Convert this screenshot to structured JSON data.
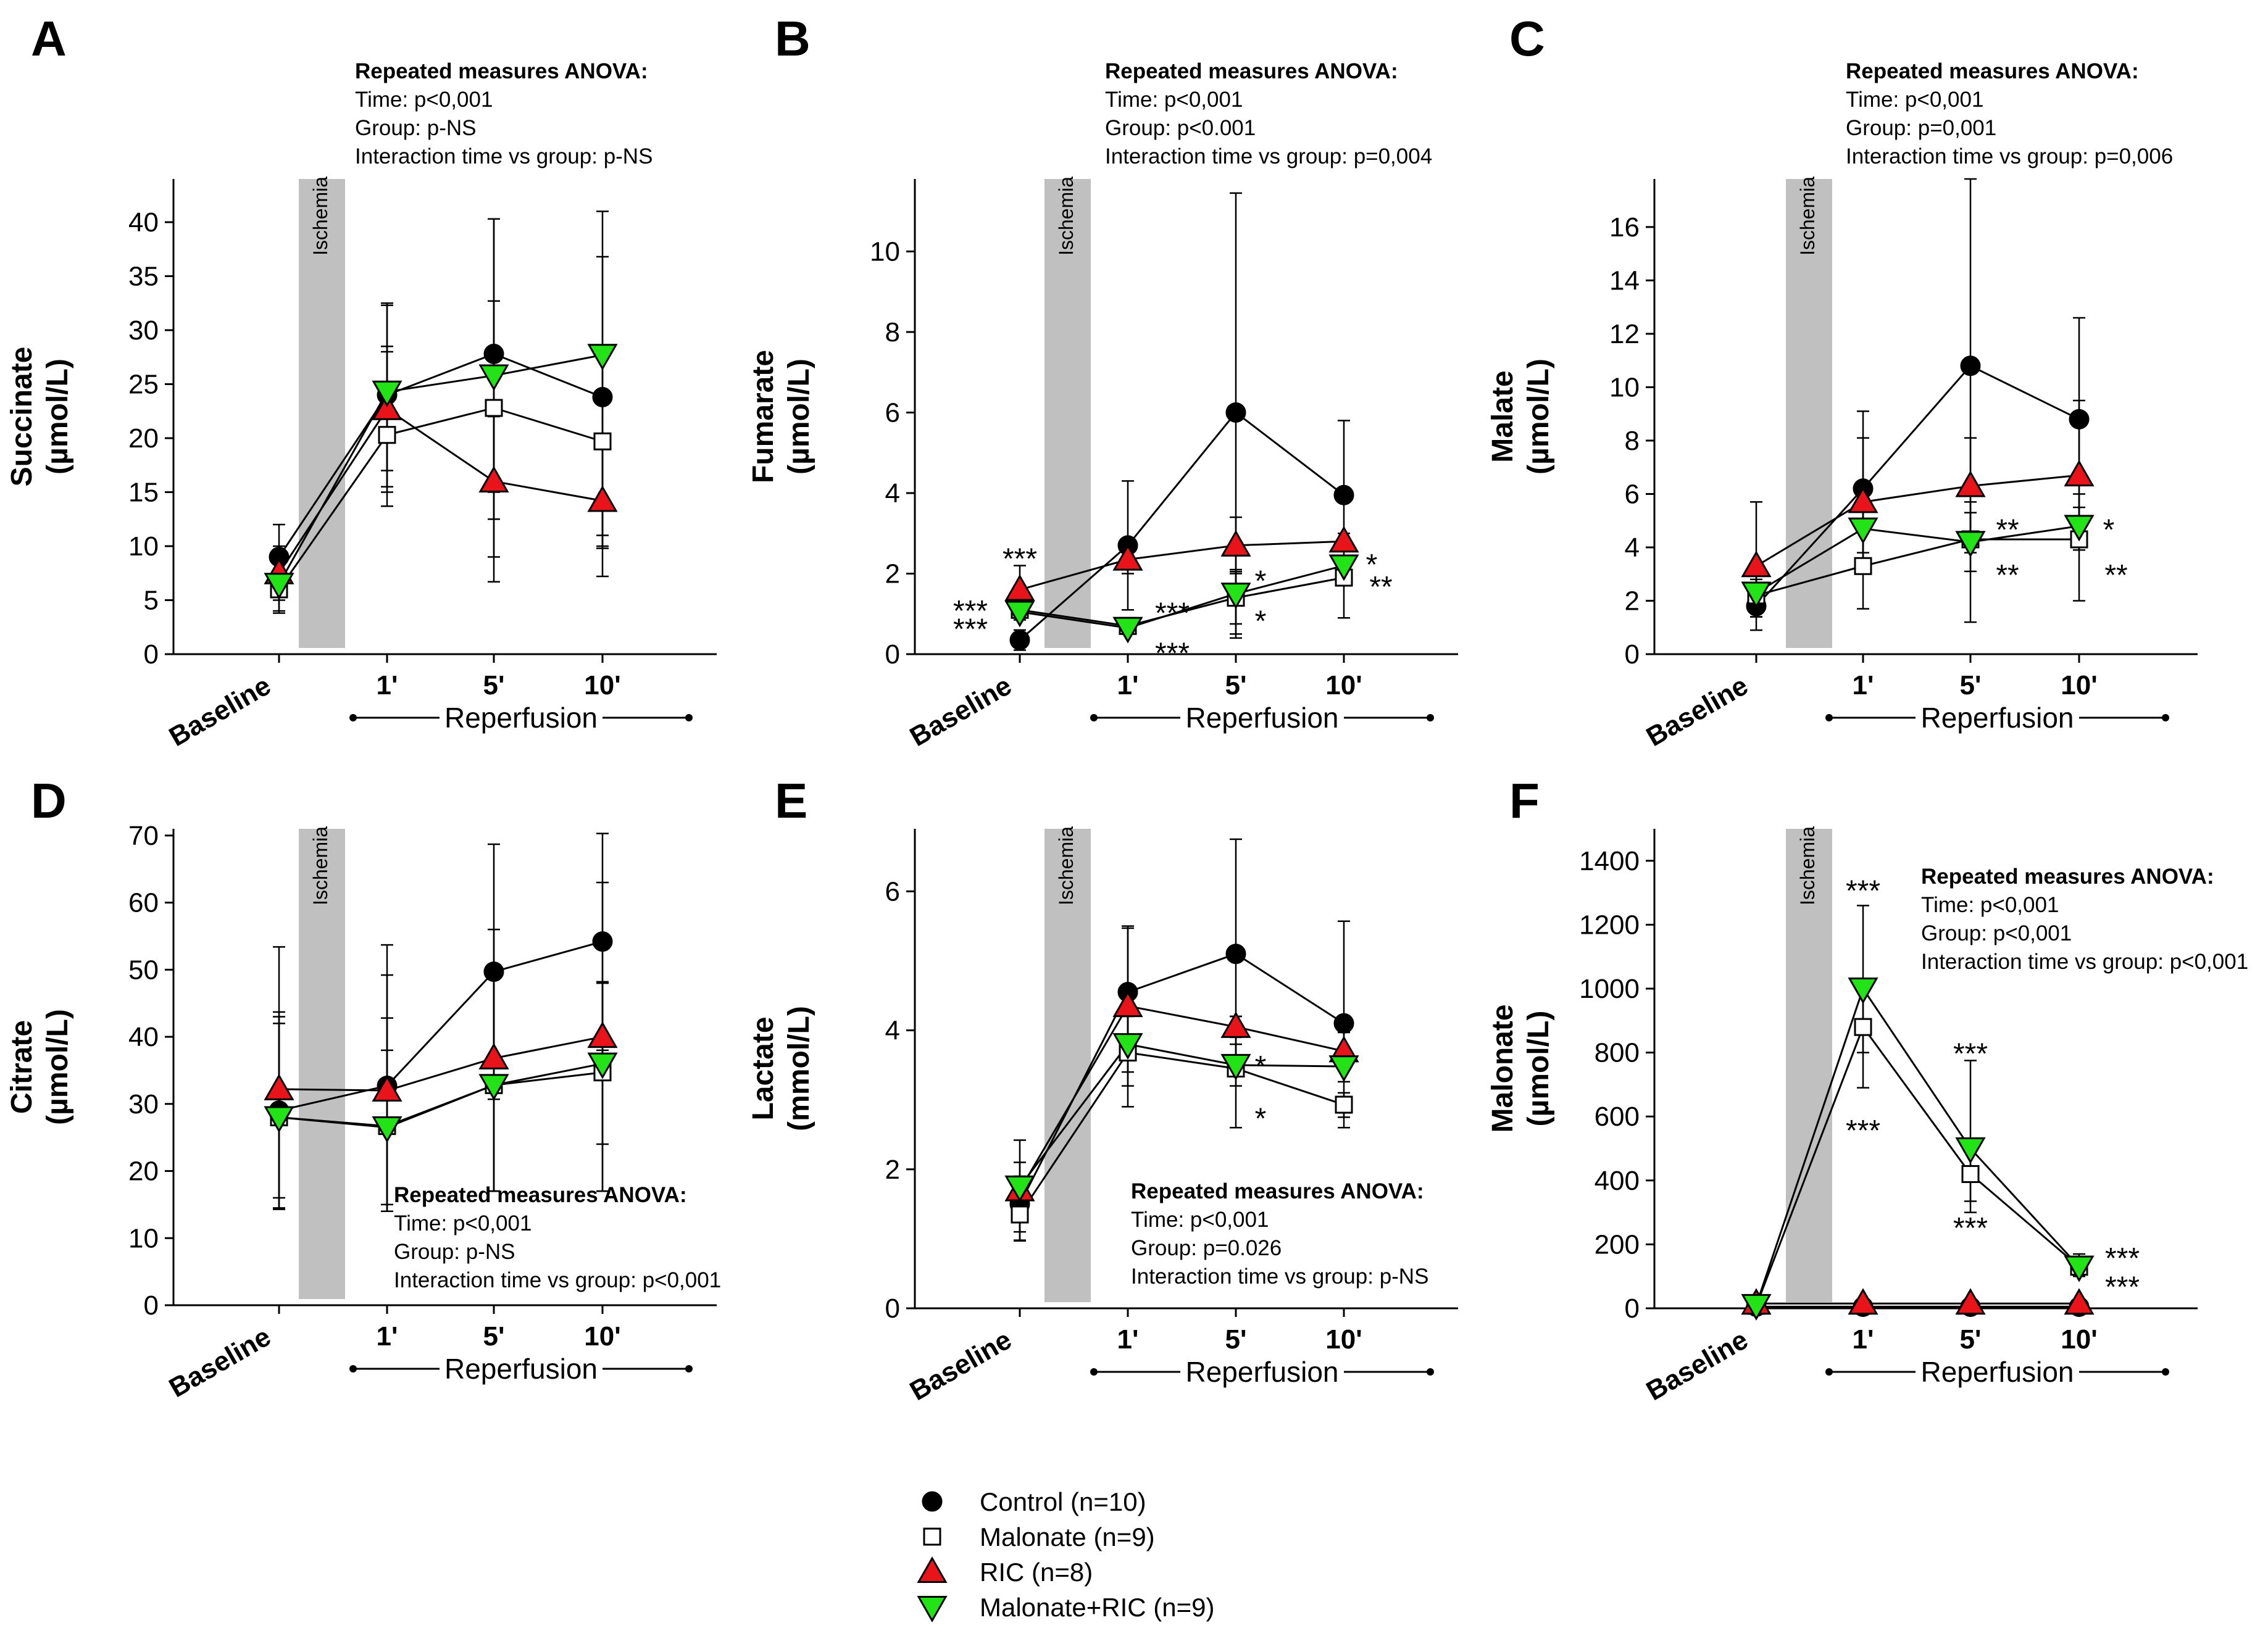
{
  "legend": {
    "items": [
      {
        "series": "control",
        "label": "Control (n=10)"
      },
      {
        "series": "malonate",
        "label": "Malonate (n=9)"
      },
      {
        "series": "ric",
        "label": "RIC (n=8)"
      },
      {
        "series": "malonate_ric",
        "label": "Malonate+RIC (n=9)"
      }
    ]
  },
  "colors": {
    "control": "#000000",
    "malonate": "#ffffff",
    "ric": "#e8141a",
    "malonate_ric": "#22e316",
    "ischemia_band": "#c0c0c0"
  },
  "markers": {
    "control": "circle",
    "malonate": "square",
    "ric": "triangle-up",
    "malonate_ric": "triangle-down"
  },
  "chart_data": [
    {
      "panel": "A",
      "type": "line",
      "ylabel": "Succinate (µmol/L)",
      "ylabel_lines": [
        "Succinate",
        "(µmol/L)"
      ],
      "categories": [
        "Baseline",
        "1'",
        "5'",
        "10'"
      ],
      "x_group_label": "Reperfusion",
      "band_label": "Ischemia",
      "ylim": [
        0,
        44
      ],
      "yticks": [
        0,
        5,
        10,
        15,
        20,
        25,
        30,
        35,
        40
      ],
      "ytick_labels": [
        "0",
        "5",
        "10",
        "15",
        "20",
        "25",
        "30",
        "35",
        "40"
      ],
      "series": [
        {
          "key": "control",
          "values": [
            9.0,
            24.0,
            27.8,
            23.8
          ],
          "err_high": [
            12.0,
            32.5,
            40.3,
            36.8
          ],
          "err_low": [
            6.0,
            15.5,
            15.0,
            11.0
          ]
        },
        {
          "key": "malonate",
          "values": [
            6.0,
            20.3,
            22.8,
            19.7
          ],
          "err_high": [
            8.5,
            28.5,
            32.7,
            27.5
          ],
          "err_low": [
            3.8,
            13.7,
            12.5,
            10.0
          ]
        },
        {
          "key": "ric",
          "values": [
            7.5,
            22.7,
            16.0,
            14.2
          ],
          "err_high": [
            10.0,
            28.0,
            22.0,
            19.5
          ],
          "err_low": [
            5.0,
            17.0,
            6.7,
            7.2
          ]
        },
        {
          "key": "malonate_ric",
          "values": [
            6.5,
            24.3,
            25.8,
            27.7
          ],
          "err_high": [
            9.5,
            32.3,
            40.3,
            41.0
          ],
          "err_low": [
            4.0,
            15.0,
            9.0,
            9.8
          ]
        }
      ],
      "significance": [],
      "anova": {
        "title": "Repeated measures ANOVA:",
        "lines": [
          "Time: p<0,001",
          "Group: p-NS",
          "Interaction time vs group: p-NS"
        ]
      }
    },
    {
      "panel": "B",
      "type": "line",
      "ylabel": "Fumarate (µmol/L)",
      "ylabel_lines": [
        "Fumarate",
        "(µmol/L)"
      ],
      "categories": [
        "Baseline",
        "1'",
        "5'",
        "10'"
      ],
      "x_group_label": "Reperfusion",
      "band_label": "Ischemia",
      "ylim": [
        0,
        11.8
      ],
      "yticks": [
        0,
        2,
        4,
        6,
        8,
        10
      ],
      "ytick_labels": [
        "0",
        "2",
        "4",
        "6",
        "8",
        "10"
      ],
      "series": [
        {
          "key": "control",
          "values": [
            0.35,
            2.7,
            6.0,
            3.95
          ],
          "err_high": [
            0.6,
            4.3,
            11.45,
            5.8
          ],
          "err_low": [
            0.1,
            1.1,
            0.5,
            2.1
          ]
        },
        {
          "key": "malonate",
          "values": [
            1.1,
            0.7,
            1.4,
            1.9
          ],
          "err_high": [
            1.3,
            0.85,
            2.05,
            2.2
          ],
          "err_low": [
            0.9,
            0.55,
            0.75,
            0.9
          ]
        },
        {
          "key": "ric",
          "values": [
            1.6,
            2.35,
            2.7,
            2.8
          ],
          "err_high": [
            2.2,
            2.7,
            3.4,
            3.0
          ],
          "err_low": [
            1.0,
            2.0,
            2.0,
            2.6
          ]
        },
        {
          "key": "malonate_ric",
          "values": [
            1.05,
            0.65,
            1.5,
            2.2
          ],
          "err_high": [
            1.25,
            0.8,
            2.1,
            2.4
          ],
          "err_low": [
            0.85,
            0.5,
            0.4,
            2.0
          ]
        }
      ],
      "significance": [
        {
          "label": "***",
          "cat": 0,
          "y": 2.4,
          "dx": 0
        },
        {
          "label": "***",
          "cat": 0,
          "y": 1.1,
          "dx": -80
        },
        {
          "label": "***",
          "cat": 0,
          "y": 0.65,
          "dx": -80
        },
        {
          "label": "***",
          "cat": 1,
          "y": 1.05,
          "dx": 72
        },
        {
          "label": "***",
          "cat": 1,
          "y": 0.05,
          "dx": 72
        },
        {
          "label": "*",
          "cat": 2,
          "y": 1.85,
          "dx": 40
        },
        {
          "label": "*",
          "cat": 2,
          "y": 0.85,
          "dx": 40
        },
        {
          "label": "*",
          "cat": 3,
          "y": 2.25,
          "dx": 45
        },
        {
          "label": "**",
          "cat": 3,
          "y": 1.7,
          "dx": 60
        }
      ],
      "anova": {
        "title": "Repeated measures ANOVA:",
        "lines": [
          "Time: p<0,001",
          "Group: p<0.001",
          "Interaction time vs group: p=0,004"
        ]
      }
    },
    {
      "panel": "C",
      "type": "line",
      "ylabel": "Malate (µmol/L)",
      "ylabel_lines": [
        "Malate",
        "(µmol/L)"
      ],
      "categories": [
        "Baseline",
        "1'",
        "5'",
        "10'"
      ],
      "x_group_label": "Reperfusion",
      "band_label": "Ischemia",
      "ylim": [
        0,
        17.8
      ],
      "yticks": [
        0,
        2,
        4,
        6,
        8,
        10,
        12,
        14,
        16
      ],
      "ytick_labels": [
        "0",
        "2",
        "4",
        "6",
        "8",
        "10",
        "12",
        "14",
        "16"
      ],
      "series": [
        {
          "key": "control",
          "values": [
            1.8,
            6.2,
            10.8,
            8.8
          ],
          "err_high": [
            2.2,
            9.1,
            17.8,
            12.6
          ],
          "err_low": [
            1.4,
            3.3,
            3.8,
            5.0
          ]
        },
        {
          "key": "malonate",
          "values": [
            2.2,
            3.3,
            4.3,
            4.3
          ],
          "err_high": [
            2.8,
            5.8,
            5.7,
            6.0
          ],
          "err_low": [
            1.6,
            1.7,
            1.2,
            2.0
          ]
        },
        {
          "key": "ric",
          "values": [
            3.3,
            5.7,
            6.3,
            6.7
          ],
          "err_high": [
            5.7,
            8.1,
            8.1,
            9.5
          ],
          "err_low": [
            0.9,
            3.3,
            4.5,
            3.9
          ]
        },
        {
          "key": "malonate_ric",
          "values": [
            2.3,
            4.7,
            4.2,
            4.8
          ],
          "err_high": [
            3.2,
            5.6,
            5.3,
            5.5
          ],
          "err_low": [
            1.4,
            3.8,
            3.1,
            4.1
          ]
        }
      ],
      "significance": [
        {
          "label": "**",
          "cat": 2,
          "y": 4.7,
          "dx": 60
        },
        {
          "label": "**",
          "cat": 2,
          "y": 3.0,
          "dx": 60
        },
        {
          "label": "*",
          "cat": 3,
          "y": 4.7,
          "dx": 48
        },
        {
          "label": "**",
          "cat": 3,
          "y": 3.0,
          "dx": 60
        }
      ],
      "anova": {
        "title": "Repeated measures ANOVA:",
        "lines": [
          "Time: p<0,001",
          "Group: p=0,001",
          "Interaction time vs group: p=0,006"
        ]
      }
    },
    {
      "panel": "D",
      "type": "line",
      "ylabel": "Citrate (µmol/L)",
      "ylabel_lines": [
        "Citrate",
        "(µmol/L)"
      ],
      "categories": [
        "Baseline",
        "1'",
        "5'",
        "10'"
      ],
      "x_group_label": "Reperfusion",
      "band_label": "Ischemia",
      "ylim": [
        0,
        71
      ],
      "yticks": [
        0,
        10,
        20,
        30,
        40,
        50,
        60,
        70
      ],
      "ytick_labels": [
        "0",
        "10",
        "20",
        "30",
        "40",
        "50",
        "60",
        "70"
      ],
      "series": [
        {
          "key": "control",
          "values": [
            29.0,
            32.7,
            49.7,
            54.2
          ],
          "err_high": [
            43.7,
            53.7,
            68.7,
            70.3
          ],
          "err_low": [
            14.3,
            14.0,
            30.7,
            38.0
          ]
        },
        {
          "key": "malonate",
          "values": [
            28.0,
            26.7,
            32.8,
            34.7
          ],
          "err_high": [
            43.0,
            42.8,
            49.0,
            48.2
          ],
          "err_low": [
            14.3,
            14.0,
            17.0,
            17.0
          ]
        },
        {
          "key": "ric",
          "values": [
            32.2,
            32.0,
            36.8,
            40.0
          ],
          "err_high": [
            53.4,
            49.2,
            56.0,
            63.0
          ],
          "err_low": [
            14.5,
            14.0,
            17.0,
            17.0
          ]
        },
        {
          "key": "malonate_ric",
          "values": [
            28.0,
            26.5,
            32.8,
            36.0
          ],
          "err_high": [
            42.0,
            38.0,
            49.0,
            48.0
          ],
          "err_low": [
            16.0,
            15.0,
            17.0,
            24.0
          ]
        }
      ],
      "significance": [],
      "anova": {
        "title": "Repeated measures ANOVA:",
        "lines": [
          "Time: p<0,001",
          "Group: p-NS",
          "Interaction time vs group: p<0,001"
        ]
      }
    },
    {
      "panel": "E",
      "type": "line",
      "ylabel": "Lactate (mmol/L)",
      "ylabel_lines": [
        "Lactate",
        "(mmol/L)"
      ],
      "categories": [
        "Baseline",
        "1'",
        "5'",
        "10'"
      ],
      "x_group_label": "Reperfusion",
      "band_label": "Ischemia",
      "ylim": [
        0,
        6.9
      ],
      "yticks": [
        0,
        2,
        4,
        6
      ],
      "ytick_labels": [
        "0",
        "2",
        "4",
        "6"
      ],
      "series": [
        {
          "key": "control",
          "values": [
            1.5,
            4.55,
            5.1,
            4.1
          ],
          "err_high": [
            1.9,
            5.5,
            6.75,
            5.57
          ],
          "err_low": [
            1.1,
            3.6,
            3.4,
            2.6
          ]
        },
        {
          "key": "malonate",
          "values": [
            1.35,
            3.68,
            3.45,
            2.93
          ],
          "err_high": [
            1.7,
            4.45,
            4.2,
            3.1
          ],
          "err_low": [
            0.97,
            2.9,
            2.6,
            2.75
          ]
        },
        {
          "key": "ric",
          "values": [
            1.7,
            4.35,
            4.05,
            3.7
          ],
          "err_high": [
            2.42,
            5.47,
            4.2,
            3.97
          ],
          "err_low": [
            0.98,
            3.2,
            3.9,
            3.45
          ]
        },
        {
          "key": "malonate_ric",
          "values": [
            1.75,
            3.8,
            3.5,
            3.48
          ],
          "err_high": [
            2.1,
            4.2,
            3.8,
            3.7
          ],
          "err_low": [
            1.4,
            3.4,
            3.2,
            3.26
          ]
        }
      ],
      "significance": [
        {
          "label": "*",
          "cat": 2,
          "y": 3.5,
          "dx": 40
        },
        {
          "label": "*",
          "cat": 2,
          "y": 2.75,
          "dx": 40
        }
      ],
      "anova": {
        "title": "Repeated measures ANOVA:",
        "lines": [
          "Time: p<0,001",
          "Group: p=0.026",
          "Interaction time vs group: p-NS"
        ]
      }
    },
    {
      "panel": "F",
      "type": "line",
      "ylabel": "Malonate (µmol/L)",
      "ylabel_lines": [
        "Malonate",
        "(µmol/L)"
      ],
      "categories": [
        "Baseline",
        "1'",
        "5'",
        "10'"
      ],
      "x_group_label": "Reperfusion",
      "band_label": "Ischemia",
      "ylim": [
        0,
        1500
      ],
      "yticks": [
        0,
        200,
        400,
        600,
        800,
        1000,
        1200,
        1400
      ],
      "ytick_labels": [
        "0",
        "200",
        "400",
        "600",
        "800",
        "1000",
        "1200",
        "1400"
      ],
      "series": [
        {
          "key": "control",
          "values": [
            5,
            5,
            5,
            5
          ],
          "err_high": null,
          "err_low": null
        },
        {
          "key": "malonate",
          "values": [
            8,
            880,
            420,
            130
          ],
          "err_high": [
            null,
            990,
            515,
            170
          ],
          "err_low": [
            null,
            690,
            335,
            100
          ]
        },
        {
          "key": "ric",
          "values": [
            15,
            15,
            15,
            15
          ],
          "err_high": null,
          "err_low": null
        },
        {
          "key": "malonate_ric",
          "values": [
            10,
            1000,
            500,
            130
          ],
          "err_high": [
            null,
            1260,
            775,
            160
          ],
          "err_low": [
            null,
            800,
            300,
            105
          ]
        }
      ],
      "significance": [
        {
          "label": "***",
          "cat": 1,
          "y": 1310,
          "dx": 0
        },
        {
          "label": "***",
          "cat": 1,
          "y": 560,
          "dx": 0
        },
        {
          "label": "***",
          "cat": 2,
          "y": 800,
          "dx": 0
        },
        {
          "label": "***",
          "cat": 2,
          "y": 255,
          "dx": 0
        },
        {
          "label": "***",
          "cat": 3,
          "y": 160,
          "dx": 70
        },
        {
          "label": "***",
          "cat": 3,
          "y": 70,
          "dx": 70
        }
      ],
      "anova": {
        "title": "Repeated measures ANOVA:",
        "lines": [
          "Time: p<0,001",
          "Group: p<0,001",
          "Interaction time vs group: p<0,001"
        ]
      }
    }
  ]
}
